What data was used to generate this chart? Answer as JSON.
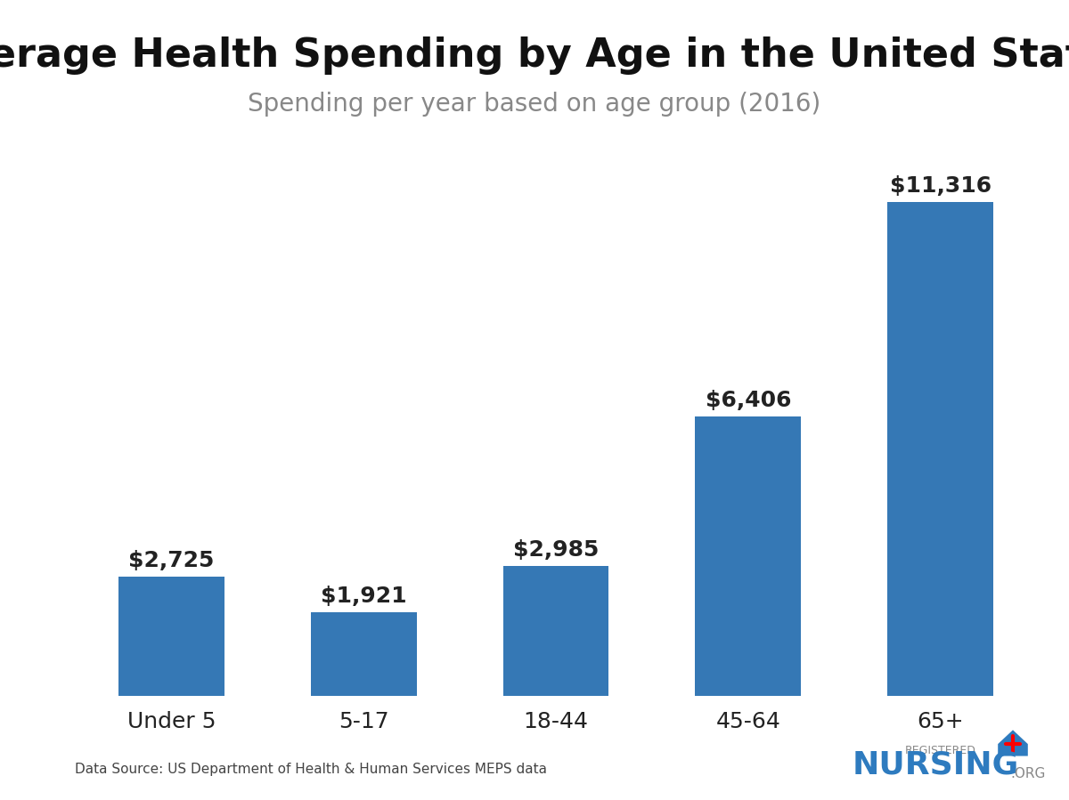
{
  "title": "Average Health Spending by Age in the United States",
  "subtitle": "Spending per year based on age group (2016)",
  "categories": [
    "Under 5",
    "5-17",
    "18-44",
    "45-64",
    "65+"
  ],
  "values": [
    2725,
    1921,
    2985,
    6406,
    11316
  ],
  "labels": [
    "$2,725",
    "$1,921",
    "$2,985",
    "$6,406",
    "$11,316"
  ],
  "bar_color": "#3578b5",
  "background_color": "#ffffff",
  "title_fontsize": 32,
  "subtitle_fontsize": 20,
  "label_fontsize": 18,
  "tick_fontsize": 18,
  "source_text": "Data Source: US Department of Health & Human Services MEPS data",
  "source_fontsize": 11,
  "ylim": [
    0,
    13000
  ]
}
